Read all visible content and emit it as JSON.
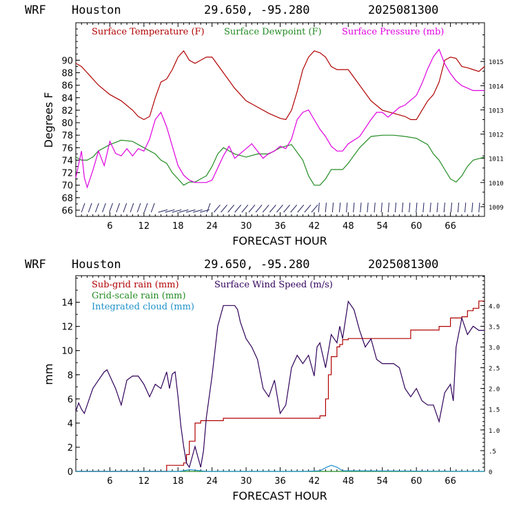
{
  "colors": {
    "red": "#b00000",
    "green": "#228b22",
    "magenta": "#e000e0",
    "purple": "#30005a",
    "blue": "#1e90c8",
    "axis": "#000000"
  },
  "chart_data": [
    {
      "type": "line",
      "header": {
        "model": "WRF",
        "location": "Houston",
        "coords": "29.650, -95.280",
        "run": "2025081300"
      },
      "xlabel": "FORECAST HOUR",
      "ylabel": "Degrees F",
      "xlim": [
        0,
        72
      ],
      "xticks": [
        6,
        12,
        18,
        24,
        30,
        36,
        42,
        48,
        54,
        60,
        66
      ],
      "ylim": [
        65,
        96
      ],
      "yticks": [
        66,
        68,
        70,
        72,
        74,
        76,
        78,
        80,
        82,
        84,
        86,
        88,
        90
      ],
      "y2lim": [
        1008.6,
        1016.6
      ],
      "y2ticks": [
        1009,
        1010,
        1011,
        1012,
        1013,
        1014,
        1015
      ],
      "legend": [
        "Surface Temperature (F)",
        "Surface Dewpoint (F)",
        "Surface Pressure (mb)"
      ],
      "series": [
        {
          "name": "Surface Temperature (F)",
          "axis": "left",
          "color": "red",
          "x": [
            0,
            1,
            2,
            4,
            6,
            8,
            10,
            11,
            12,
            13,
            14,
            15,
            16,
            17,
            18,
            19,
            20,
            21,
            22,
            23,
            24,
            26,
            28,
            30,
            32,
            34,
            36,
            37,
            38,
            39,
            40,
            41,
            42,
            43,
            44,
            45,
            46,
            48,
            50,
            52,
            54,
            56,
            58,
            59,
            60,
            61,
            62,
            63,
            64,
            65,
            66,
            67,
            68,
            69,
            70,
            71,
            72
          ],
          "y": [
            89.5,
            89,
            88,
            86,
            84.5,
            83.5,
            82,
            81,
            80.5,
            81,
            84,
            86.5,
            87,
            88.5,
            90.5,
            91.5,
            90,
            89.5,
            90,
            90.5,
            90.5,
            88,
            85.5,
            83.5,
            82.5,
            81.5,
            80.7,
            80.5,
            82,
            85,
            88.5,
            90.5,
            91.5,
            91.2,
            90.5,
            89,
            88.5,
            88.5,
            86,
            83.5,
            82,
            81.5,
            81,
            80.5,
            80.5,
            82,
            83.5,
            84.5,
            86.5,
            90,
            90.5,
            90.3,
            89,
            88.8,
            88.5,
            88.2,
            89
          ]
        },
        {
          "name": "Surface Dewpoint (F)",
          "axis": "left",
          "color": "green",
          "x": [
            0,
            1,
            2,
            3,
            4,
            6,
            8,
            10,
            12,
            14,
            15,
            16,
            17,
            18,
            19,
            20,
            21,
            22,
            23,
            24,
            25,
            26,
            28,
            30,
            32,
            34,
            36,
            38,
            40,
            41,
            42,
            43,
            44,
            45,
            46,
            47,
            48,
            50,
            52,
            54,
            56,
            58,
            60,
            62,
            63,
            64,
            65,
            66,
            67,
            68,
            69,
            70,
            72
          ],
          "y": [
            74.5,
            74,
            74,
            74.5,
            75.5,
            76.5,
            77.2,
            77,
            76,
            75,
            74,
            73.5,
            72,
            71,
            70,
            70.5,
            70.5,
            71,
            71.5,
            73,
            75,
            76,
            75,
            74.5,
            75,
            75,
            76,
            76.5,
            74,
            71.5,
            70,
            70,
            71,
            72.5,
            72.5,
            72.5,
            73.5,
            76,
            77.8,
            78,
            78,
            77.8,
            77.5,
            76.5,
            75,
            74,
            72.5,
            71,
            70.5,
            71.5,
            73,
            74,
            74.5
          ]
        },
        {
          "name": "Surface Pressure (mb)",
          "axis": "right",
          "color": "magenta",
          "x": [
            0,
            1,
            1.5,
            2,
            3,
            4,
            5,
            6,
            7,
            8,
            9,
            10,
            11,
            12,
            13,
            14,
            15,
            16,
            17,
            18,
            19,
            20,
            21,
            22,
            23,
            24,
            25,
            26,
            27,
            28,
            29,
            30,
            31,
            32,
            33,
            34,
            35,
            36,
            37,
            38,
            39,
            40,
            41,
            42,
            43,
            44,
            45,
            46,
            47,
            48,
            50,
            52,
            53,
            54,
            55,
            56,
            57,
            58,
            59,
            60,
            61,
            62,
            63,
            64,
            65,
            66,
            67,
            68,
            70,
            72
          ],
          "y": [
            1010.2,
            1011.3,
            1010.2,
            1009.8,
            1010.5,
            1011.3,
            1010.7,
            1011.7,
            1011.2,
            1011.1,
            1011.4,
            1011.1,
            1011.4,
            1011.3,
            1011.8,
            1012.6,
            1012.9,
            1012.3,
            1011.5,
            1010.7,
            1010.3,
            1010.1,
            1010.0,
            1010.0,
            1010.0,
            1010.1,
            1010.6,
            1011.1,
            1011.5,
            1011.0,
            1011.2,
            1011.4,
            1011.6,
            1011.3,
            1011.0,
            1011.2,
            1011.3,
            1011.5,
            1011.4,
            1011.8,
            1012.6,
            1012.9,
            1013.0,
            1012.6,
            1012.2,
            1011.9,
            1011.5,
            1011.3,
            1011.3,
            1011.6,
            1011.9,
            1012.6,
            1012.9,
            1012.9,
            1012.7,
            1012.9,
            1013.1,
            1013.2,
            1013.4,
            1013.6,
            1014.1,
            1014.7,
            1015.2,
            1015.5,
            1014.9,
            1014.5,
            1014.2,
            1014.0,
            1013.8,
            1013.8
          ]
        }
      ],
      "wind_barbs": {
        "count": 58
      }
    },
    {
      "type": "line",
      "header": {
        "model": "WRF",
        "location": "Houston",
        "coords": "29.650, -95.280",
        "run": "2025081300"
      },
      "xlabel": "FORECAST HOUR",
      "ylabel": "mm",
      "xlim": [
        0,
        72
      ],
      "xticks": [
        6,
        12,
        18,
        24,
        30,
        36,
        42,
        48,
        54,
        60,
        66
      ],
      "ylim": [
        0,
        16.2
      ],
      "yticks": [
        0,
        2,
        4,
        6,
        8,
        10,
        12,
        14
      ],
      "y2lim": [
        0,
        4.72
      ],
      "y2ticks": [
        "0",
        ".5",
        "1.0",
        "1.5",
        "2.0",
        "2.5",
        "3.0",
        "3.5",
        "4.0"
      ],
      "y2tick_values": [
        0,
        0.5,
        1.0,
        1.5,
        2.0,
        2.5,
        3.0,
        3.5,
        4.0
      ],
      "legend": [
        "Sub-grid rain (mm)",
        "Surface Wind Speed (m/s)",
        "Grid-scale rain (mm)",
        "Integrated cloud (mm)"
      ],
      "series": [
        {
          "name": "Sub-grid rain (mm)",
          "axis": "left",
          "color": "red",
          "step": true,
          "x": [
            0,
            15,
            16,
            18,
            19,
            19.5,
            20,
            21,
            22,
            23,
            24,
            25,
            26,
            27,
            30,
            36,
            42,
            43,
            44,
            44.5,
            45,
            46,
            46.5,
            47,
            48,
            50,
            52,
            54,
            56,
            58,
            59,
            60,
            62,
            64,
            65,
            66,
            67,
            68,
            69,
            70,
            71,
            72
          ],
          "y": [
            0,
            0,
            0.5,
            0.5,
            0.7,
            1.4,
            2.5,
            4.0,
            4.2,
            4.2,
            4.2,
            4.2,
            4.4,
            4.4,
            4.4,
            4.4,
            4.4,
            4.6,
            6.0,
            8.0,
            9.5,
            10.3,
            10.5,
            10.9,
            11.0,
            11.0,
            11.0,
            11.0,
            11.0,
            11.0,
            11.7,
            11.7,
            11.7,
            12.0,
            12.0,
            12.7,
            12.7,
            12.8,
            13.3,
            13.5,
            14.1,
            14.1
          ]
        },
        {
          "name": "Surface Wind Speed (m/s)",
          "axis": "right",
          "color": "purple",
          "x": [
            0,
            0.5,
            1,
            1.5,
            2,
            3,
            4,
            5,
            5.5,
            6,
            7,
            8,
            9,
            10,
            11,
            12,
            13,
            14,
            15,
            16,
            16.5,
            17,
            17.5,
            18,
            18.5,
            19,
            19.5,
            20,
            21,
            22,
            22.5,
            23,
            24,
            25,
            26,
            27,
            28,
            28.5,
            29,
            30,
            31,
            32,
            33,
            34,
            35,
            36,
            37,
            38,
            39,
            40,
            41,
            42,
            42.5,
            43,
            44,
            45,
            46,
            46.5,
            47,
            48,
            49,
            50,
            51,
            52,
            53,
            54,
            55,
            56,
            57,
            58,
            59,
            60,
            61,
            62,
            63,
            64,
            65,
            66,
            66.5,
            67,
            68,
            68.5,
            69,
            70,
            71,
            72
          ],
          "y": [
            1.45,
            1.65,
            1.5,
            1.4,
            1.6,
            2.0,
            2.2,
            2.4,
            2.45,
            2.3,
            2.0,
            1.6,
            2.2,
            2.3,
            2.3,
            2.1,
            1.8,
            2.1,
            2.0,
            2.4,
            2.0,
            2.35,
            2.4,
            1.8,
            1.1,
            0.6,
            0.2,
            0.1,
            0.6,
            0.1,
            0.5,
            1.3,
            2.3,
            3.5,
            4.0,
            4.0,
            4.0,
            3.9,
            3.6,
            3.2,
            3.0,
            2.7,
            2.0,
            1.8,
            2.2,
            1.4,
            1.6,
            2.5,
            2.8,
            2.6,
            2.8,
            2.3,
            3.0,
            3.1,
            2.5,
            3.3,
            3.1,
            3.5,
            3.2,
            4.1,
            3.9,
            3.4,
            3.0,
            3.2,
            2.7,
            2.6,
            2.6,
            2.6,
            2.5,
            2.0,
            1.8,
            2.0,
            1.7,
            1.6,
            1.6,
            1.2,
            1.9,
            2.1,
            1.7,
            3.0,
            3.7,
            3.5,
            3.3,
            3.5,
            3.4,
            3.4
          ]
        },
        {
          "name": "Grid-scale rain (mm)",
          "axis": "left",
          "color": "green",
          "x": [
            0,
            72
          ],
          "y": [
            0,
            0
          ]
        },
        {
          "name": "Integrated cloud (mm)",
          "axis": "left",
          "color": "blue",
          "x": [
            0,
            18,
            19,
            20,
            21,
            22,
            23,
            40,
            43,
            44,
            45,
            46,
            47,
            72
          ],
          "y": [
            0,
            0,
            0.05,
            0.15,
            0.1,
            0.05,
            0,
            0,
            0.05,
            0.3,
            0.5,
            0.35,
            0.05,
            0
          ]
        }
      ]
    }
  ]
}
